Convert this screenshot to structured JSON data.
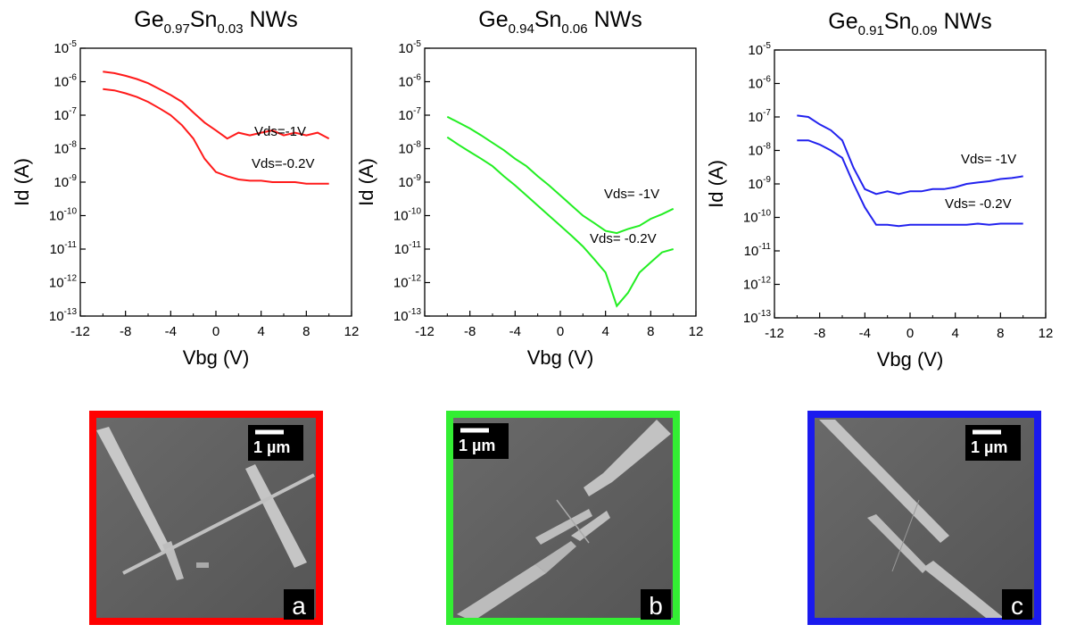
{
  "chart_data": [
    {
      "type": "line",
      "title": "Ge0.97Sn0.03 NWs",
      "xlabel": "Vbg (V)",
      "ylabel": "Id (A)",
      "log_y": true,
      "x": [
        -10,
        -9,
        -8,
        -7,
        -6,
        -5,
        -4,
        -3,
        -2,
        -1,
        0,
        1,
        2,
        3,
        4,
        5,
        6,
        7,
        8,
        9,
        10
      ],
      "series": [
        {
          "name": "Vds=-1V",
          "color": "#ff1a1a",
          "values": [
            2e-06,
            1.8e-06,
            1.5e-06,
            1.2e-06,
            9e-07,
            6e-07,
            4e-07,
            2.5e-07,
            1.2e-07,
            6e-08,
            3.5e-08,
            2e-08,
            3e-08,
            2.5e-08,
            3e-08,
            3.5e-08,
            2.5e-08,
            3e-08,
            2.5e-08,
            3e-08,
            2e-08
          ]
        },
        {
          "name": "Vds=-0.2V",
          "color": "#ff1a1a",
          "values": [
            6e-07,
            5.5e-07,
            4.5e-07,
            3.5e-07,
            2.5e-07,
            1.6e-07,
            1e-07,
            5e-08,
            2e-08,
            5e-09,
            2e-09,
            1.5e-09,
            1.2e-09,
            1.1e-09,
            1.1e-09,
            1e-09,
            1e-09,
            1e-09,
            9e-10,
            9e-10,
            9e-10
          ]
        }
      ],
      "xlim": [
        -12,
        12
      ],
      "xticks": [
        -12,
        -8,
        -4,
        0,
        4,
        8,
        12
      ],
      "ylim": [
        1e-13,
        1e-05
      ],
      "yticks": [
        {
          "value": 1e-13,
          "label": "10-13"
        },
        {
          "value": 1e-12,
          "label": "10-12"
        },
        {
          "value": 1e-11,
          "label": "10-11"
        },
        {
          "value": 1e-10,
          "label": "10-10"
        },
        {
          "value": 1e-09,
          "label": "10-9"
        },
        {
          "value": 1e-08,
          "label": "10-8"
        },
        {
          "value": 1e-07,
          "label": "10-7"
        },
        {
          "value": 1e-06,
          "label": "10-6"
        },
        {
          "value": 1e-05,
          "label": "10-5"
        }
      ]
    },
    {
      "type": "line",
      "title": "Ge0.94Sn0.06 NWs",
      "xlabel": "Vbg (V)",
      "ylabel": "Id (A)",
      "log_y": true,
      "x": [
        -10,
        -9,
        -8,
        -7,
        -6,
        -5,
        -4,
        -3,
        -2,
        -1,
        0,
        1,
        2,
        3,
        4,
        5,
        6,
        7,
        8,
        9,
        10
      ],
      "series": [
        {
          "name": "Vds= -1V",
          "color": "#22ee22",
          "values": [
            9e-08,
            6e-08,
            4e-08,
            2.5e-08,
            1.5e-08,
            9e-09,
            5e-09,
            3e-09,
            1.5e-09,
            8e-10,
            4e-10,
            2e-10,
            1e-10,
            6e-11,
            3.5e-11,
            3e-11,
            4e-11,
            5e-11,
            8e-11,
            1.1e-10,
            1.6e-10
          ]
        },
        {
          "name": "Vds= -0.2V",
          "color": "#22ee22",
          "values": [
            2.2e-08,
            1.3e-08,
            8e-09,
            5e-09,
            3e-09,
            1.5e-09,
            8e-10,
            4e-10,
            2e-10,
            1e-10,
            5e-11,
            2.5e-11,
            1.2e-11,
            5e-12,
            2e-12,
            2e-13,
            5e-13,
            2e-12,
            4e-12,
            8e-12,
            1e-11
          ]
        }
      ],
      "xlim": [
        -12,
        12
      ],
      "xticks": [
        -12,
        -8,
        -4,
        0,
        4,
        8,
        12
      ],
      "ylim": [
        1e-13,
        1e-05
      ],
      "yticks": [
        {
          "value": 1e-13,
          "label": "10-13"
        },
        {
          "value": 1e-12,
          "label": "10-12"
        },
        {
          "value": 1e-11,
          "label": "10-11"
        },
        {
          "value": 1e-10,
          "label": "10-10"
        },
        {
          "value": 1e-09,
          "label": "10-9"
        },
        {
          "value": 1e-08,
          "label": "10-8"
        },
        {
          "value": 1e-07,
          "label": "10-7"
        },
        {
          "value": 1e-06,
          "label": "10-6"
        },
        {
          "value": 1e-05,
          "label": "10-5"
        }
      ]
    },
    {
      "type": "line",
      "title": "Ge0.91Sn0.09 NWs",
      "xlabel": "Vbg (V)",
      "ylabel": "Id (A)",
      "log_y": true,
      "x": [
        -10,
        -9,
        -8,
        -7,
        -6,
        -5,
        -4,
        -3,
        -2,
        -1,
        0,
        1,
        2,
        3,
        4,
        5,
        6,
        7,
        8,
        9,
        10
      ],
      "series": [
        {
          "name": "Vds= -1V",
          "color": "#2222ee",
          "values": [
            1.1e-07,
            1e-07,
            6e-08,
            4e-08,
            2e-08,
            3e-09,
            7e-10,
            5e-10,
            6e-10,
            5e-10,
            6e-10,
            6e-10,
            7e-10,
            7e-10,
            8e-10,
            1e-09,
            1.1e-09,
            1.2e-09,
            1.4e-09,
            1.5e-09,
            1.7e-09
          ]
        },
        {
          "name": "Vds= -0.2V",
          "color": "#2222ee",
          "values": [
            2e-08,
            2e-08,
            1.5e-08,
            1e-08,
            6e-09,
            1e-09,
            2e-10,
            6e-11,
            6e-11,
            5.5e-11,
            6e-11,
            6e-11,
            6e-11,
            6e-11,
            6e-11,
            6e-11,
            6.5e-11,
            6e-11,
            6.5e-11,
            6.5e-11,
            6.5e-11
          ]
        }
      ],
      "xlim": [
        -12,
        12
      ],
      "xticks": [
        -12,
        -8,
        -4,
        0,
        4,
        8,
        12
      ],
      "ylim": [
        1e-13,
        1e-05
      ],
      "yticks": [
        {
          "value": 1e-13,
          "label": "10-13"
        },
        {
          "value": 1e-12,
          "label": "10-12"
        },
        {
          "value": 1e-11,
          "label": "10-11"
        },
        {
          "value": 1e-10,
          "label": "10-10"
        },
        {
          "value": 1e-09,
          "label": "10-9"
        },
        {
          "value": 1e-08,
          "label": "10-8"
        },
        {
          "value": 1e-07,
          "label": "10-7"
        },
        {
          "value": 1e-06,
          "label": "10-6"
        },
        {
          "value": 1e-05,
          "label": "10-5"
        }
      ]
    }
  ],
  "images": [
    {
      "scale": "1 µm",
      "letter": "a",
      "color": "#ff0000"
    },
    {
      "scale": "1 µm",
      "letter": "b",
      "color": "#33ee33"
    },
    {
      "scale": "1 µm",
      "letter": "c",
      "color": "#1a1aee"
    }
  ]
}
